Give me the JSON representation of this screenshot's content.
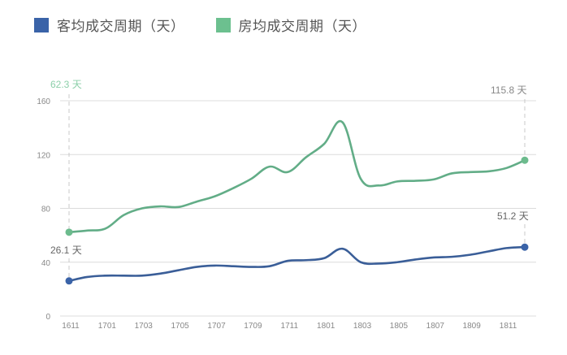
{
  "legend": {
    "items": [
      {
        "label": "客均成交周期（天）",
        "color": "#3a63a8"
      },
      {
        "label": "房均成交周期（天）",
        "color": "#6cc08f"
      }
    ]
  },
  "annotations": {
    "green_start": "62.3 天",
    "green_end": "115.8 天",
    "blue_start": "26.1 天",
    "blue_end": "51.2 天"
  },
  "axis": {
    "y_ticks": [
      "0",
      "40",
      "80",
      "120",
      "160"
    ],
    "x_ticks": [
      "1611",
      "1701",
      "1703",
      "1705",
      "1707",
      "1709",
      "1711",
      "1801",
      "1803",
      "1805",
      "1807",
      "1809",
      "1811"
    ]
  },
  "chart_data": {
    "type": "line",
    "title": "",
    "xlabel": "",
    "ylabel": "",
    "ylim": [
      0,
      160
    ],
    "grid": true,
    "legend_position": "top",
    "x": [
      "1611",
      "1612",
      "1701",
      "1702",
      "1703",
      "1704",
      "1705",
      "1706",
      "1707",
      "1708",
      "1709",
      "1710",
      "1711",
      "1712",
      "1801",
      "1802",
      "1803",
      "1804",
      "1805",
      "1806",
      "1807",
      "1808",
      "1809",
      "1810",
      "1811",
      "1812"
    ],
    "series": [
      {
        "name": "客均成交周期（天）",
        "color": "#3a63a8",
        "values": [
          26.1,
          29,
          30,
          30,
          30,
          31.5,
          34,
          36.5,
          37.5,
          37,
          36.5,
          37,
          41,
          41.5,
          43,
          50,
          40,
          39,
          40,
          42,
          43.5,
          44,
          45.5,
          48,
          50.5,
          51.2
        ]
      },
      {
        "name": "房均成交周期（天）",
        "color": "#6cc08f",
        "values": [
          62.3,
          63.5,
          65,
          75,
          80,
          81.5,
          81,
          85,
          89,
          95,
          102,
          111,
          107,
          118,
          128,
          144,
          102,
          97,
          100,
          100.5,
          101.5,
          106,
          107,
          107.5,
          110,
          115.8
        ]
      }
    ],
    "annotations": [
      {
        "series": "房均成交周期（天）",
        "x": "1611",
        "text": "62.3 天"
      },
      {
        "series": "房均成交周期（天）",
        "x": "1812",
        "text": "115.8 天"
      },
      {
        "series": "客均成交周期（天）",
        "x": "1611",
        "text": "26.1 天"
      },
      {
        "series": "客均成交周期（天）",
        "x": "1812",
        "text": "51.2 天"
      }
    ]
  }
}
